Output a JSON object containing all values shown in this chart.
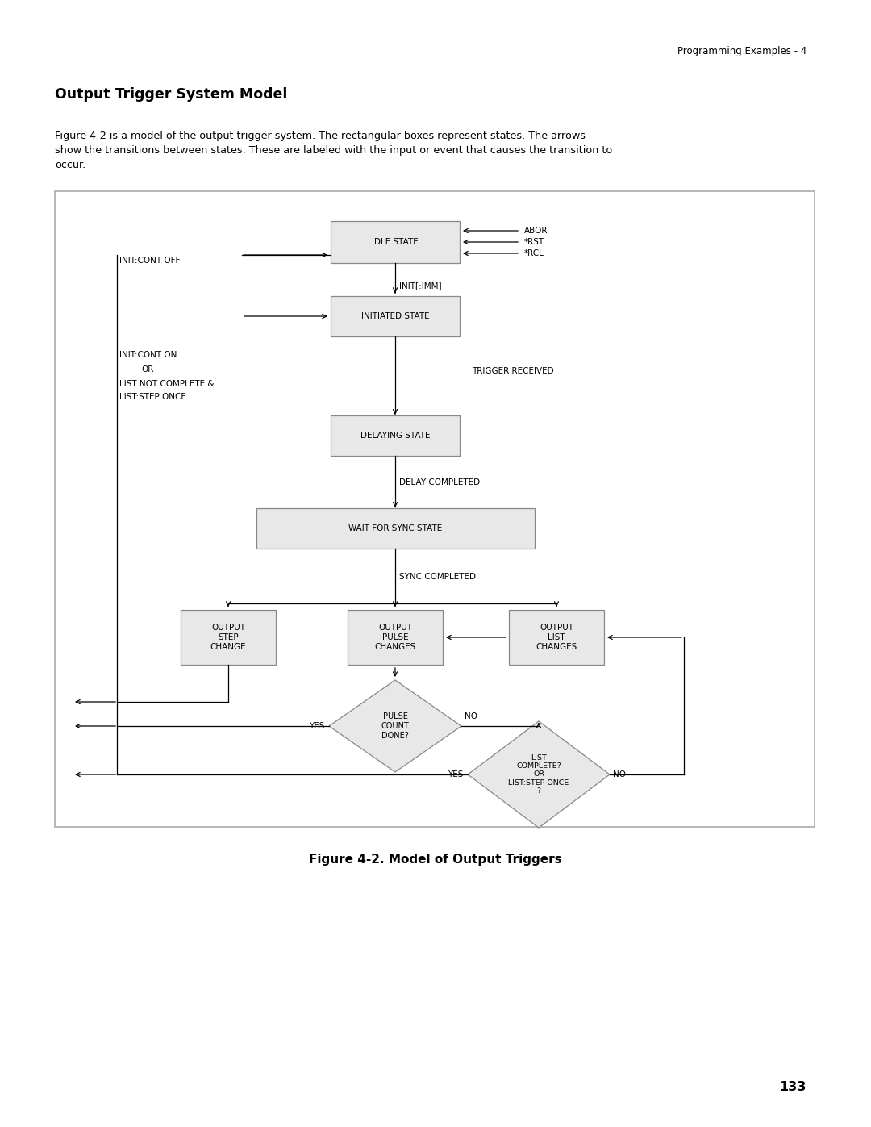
{
  "page_header": "Programming Examples - 4",
  "title": "Output Trigger System Model",
  "body_text": "Figure 4-2 is a model of the output trigger system. The rectangular boxes represent states. The arrows\nshow the transitions between states. These are labeled with the input or event that causes the transition to\noccur.",
  "figure_caption": "Figure 4-2. Model of Output Triggers",
  "page_number": "133",
  "bg_color": "#ffffff",
  "box_fill": "#e8e8e8",
  "box_edge": "#888888",
  "arrow_color": "#000000",
  "text_color": "#000000",
  "font_size_small": 7.5,
  "font_size_label": 8.0
}
